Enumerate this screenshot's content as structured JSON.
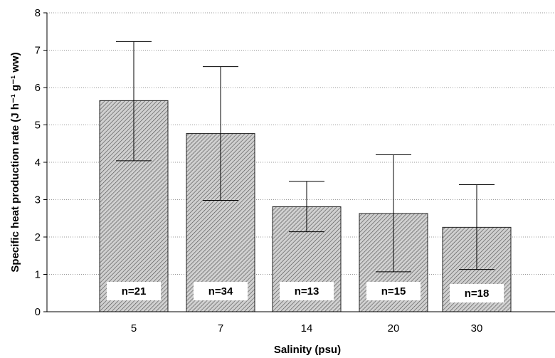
{
  "chart_data": {
    "type": "bar",
    "xlabel": "Salinity (psu)",
    "ylabel": "Specific heat production rate (J h⁻¹ g⁻¹ ww)",
    "categories": [
      "5",
      "7",
      "14",
      "20",
      "30"
    ],
    "values": [
      5.65,
      4.77,
      2.81,
      2.63,
      2.26
    ],
    "error_upper": [
      7.23,
      6.56,
      3.49,
      4.2,
      3.4
    ],
    "error_lower": [
      4.04,
      2.98,
      2.14,
      1.07,
      1.13
    ],
    "sample_labels": [
      "n=21",
      "n=34",
      "n=13",
      "n=15",
      "n=18"
    ],
    "ylim": [
      0,
      8
    ],
    "yticks": [
      "0",
      "1",
      "2",
      "3",
      "4",
      "5",
      "6",
      "7",
      "8"
    ],
    "grid": "horizontal-dotted",
    "bar_fill": "diagonal-hatch"
  }
}
